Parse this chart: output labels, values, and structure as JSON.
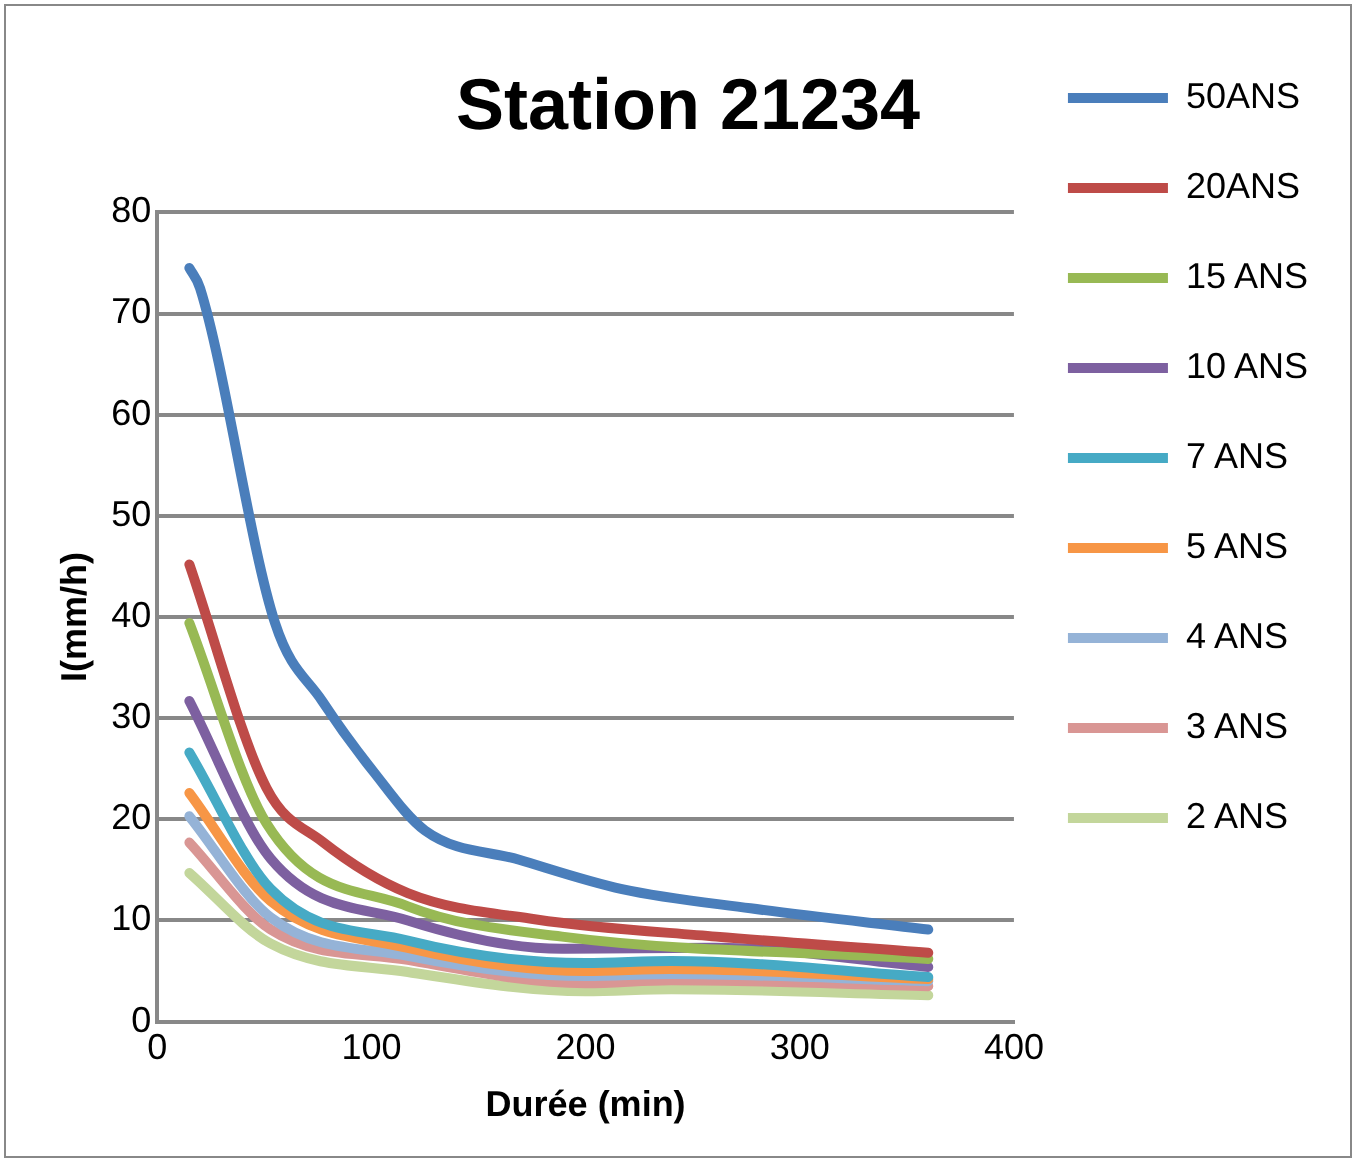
{
  "chart_data": {
    "type": "line",
    "title": "Station 21234",
    "xlabel": "Durée (min)",
    "ylabel": "I(mm/h)",
    "xlim": [
      0,
      400
    ],
    "xticks": [
      0,
      100,
      200,
      300,
      400
    ],
    "ylim": [
      0,
      80
    ],
    "yticks": [
      0,
      10,
      20,
      30,
      40,
      50,
      60,
      70,
      80
    ],
    "grid": "y",
    "legend": "right",
    "marker": "none",
    "line_style": "solid",
    "series": [
      {
        "name": "50ANS",
        "color": "#4a7ebb",
        "x": [
          15,
          20,
          55,
          77,
          101,
          125,
          169,
          217,
          277,
          360
        ],
        "values": [
          74.5,
          72.5,
          39.4,
          31.7,
          24.7,
          18.9,
          16,
          13.1,
          11.2,
          9.1
        ]
      },
      {
        "name": "20ANS",
        "color": "#be4b48",
        "x": [
          15,
          51,
          77,
          117,
          177,
          261,
          360
        ],
        "values": [
          45.2,
          23.1,
          17.8,
          12.7,
          10.1,
          8.4,
          6.8
        ]
      },
      {
        "name": "15 ANS",
        "color": "#98b954",
        "x": [
          15,
          51,
          117,
          189,
          360
        ],
        "values": [
          39.4,
          19.6,
          11.4,
          8.4,
          6.2
        ]
      },
      {
        "name": "10 ANS",
        "color": "#7d60a0",
        "x": [
          15,
          53,
          117,
          189,
          261,
          360
        ],
        "values": [
          31.7,
          16.1,
          10,
          7.2,
          7.3,
          5.4
        ]
      },
      {
        "name": "7 ANS",
        "color": "#46aac5",
        "x": [
          15,
          53,
          117,
          200,
          240,
          360
        ],
        "values": [
          26.6,
          13.1,
          8,
          5.8,
          6,
          4.4
        ]
      },
      {
        "name": "5 ANS",
        "color": "#f79646",
        "x": [
          15,
          53,
          117,
          200,
          240,
          360
        ],
        "values": [
          22.6,
          11.9,
          7.3,
          5,
          5.2,
          4.2
        ]
      },
      {
        "name": "4 ANS",
        "color": "#95b3d7",
        "x": [
          15,
          53,
          117,
          200,
          240,
          360
        ],
        "values": [
          20.3,
          10.3,
          6.5,
          4.5,
          4.7,
          4
        ]
      },
      {
        "name": "3 ANS",
        "color": "#d99694",
        "x": [
          15,
          53,
          117,
          200,
          240,
          360
        ],
        "values": [
          17.7,
          9.1,
          6.1,
          3.8,
          4.1,
          3.5
        ]
      },
      {
        "name": "2 ANS",
        "color": "#c3d69b",
        "x": [
          15,
          53,
          117,
          200,
          240,
          360
        ],
        "values": [
          14.7,
          7.7,
          4.9,
          3,
          3.2,
          2.6
        ]
      }
    ]
  }
}
